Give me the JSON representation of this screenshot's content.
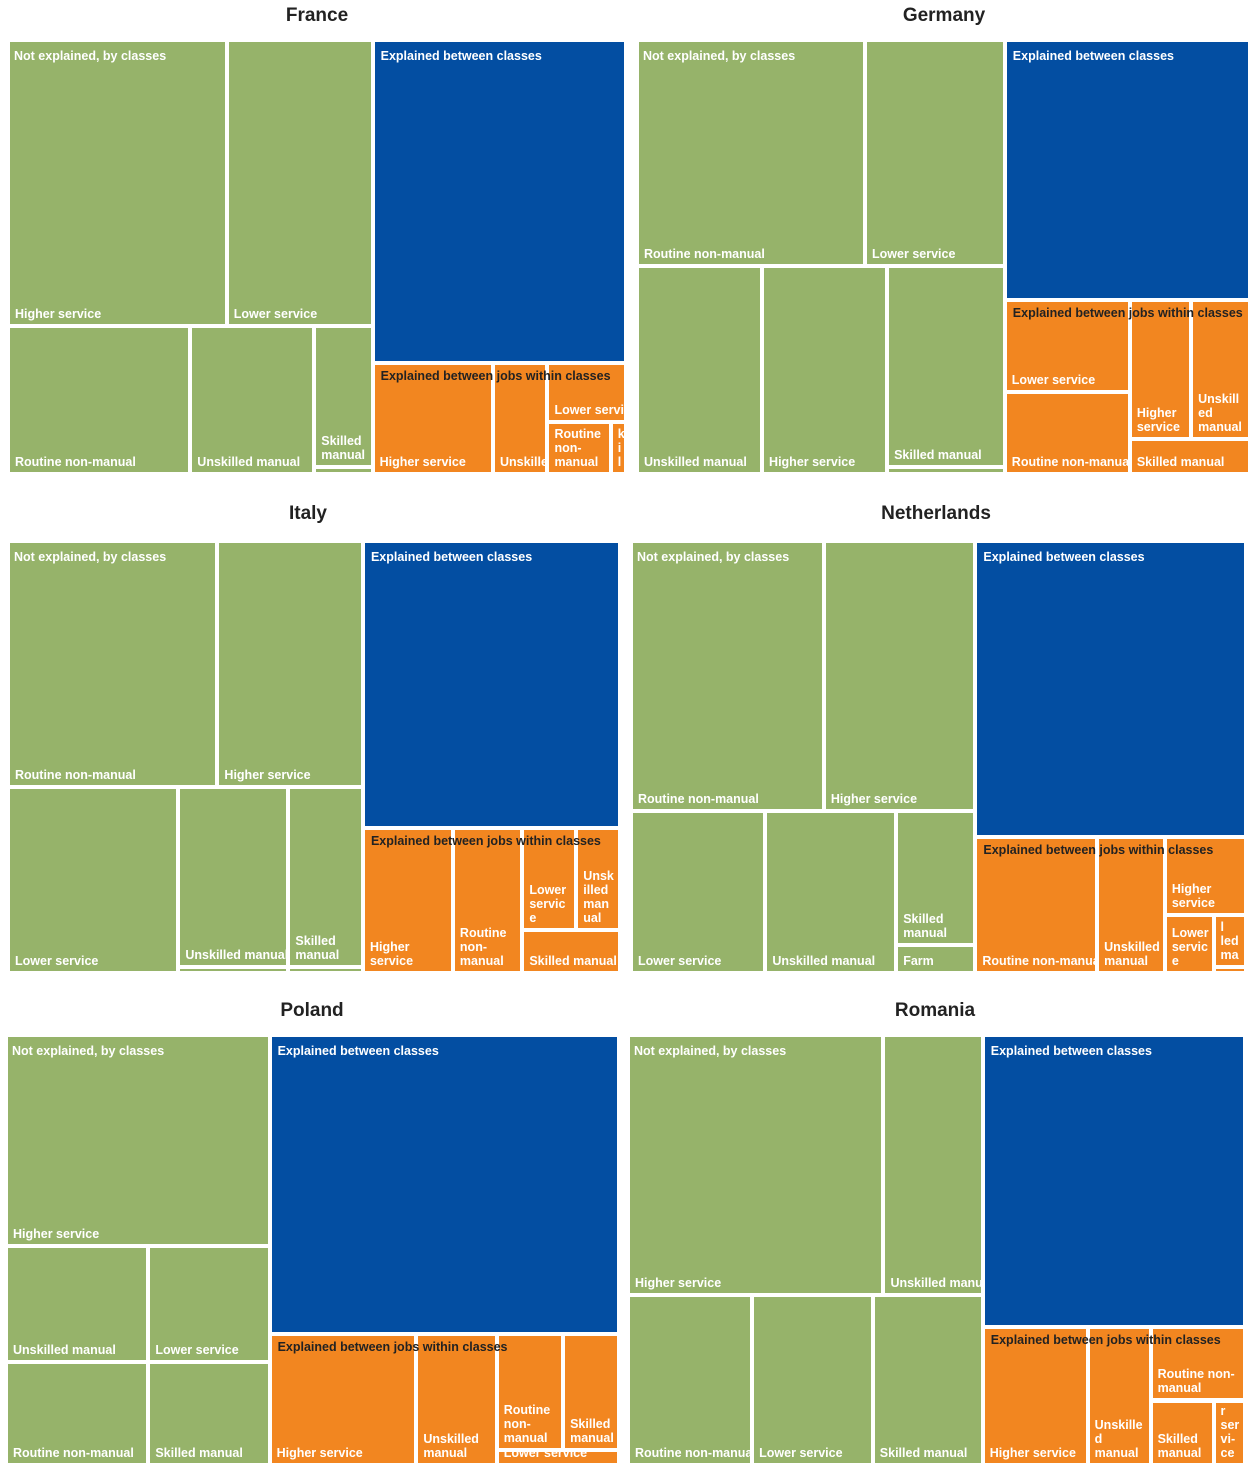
{
  "colors": {
    "not_explained": "#96b36a",
    "between_classes": "#034ea2",
    "within_classes": "#f28620"
  },
  "chart_data": [
    {
      "type": "treemap",
      "title": "France",
      "groups": [
        {
          "name": "Not explained, by classes",
          "color": "#96b36a",
          "children": [
            {
              "name": "Higher service",
              "value": 23.3
            },
            {
              "name": "Lower service",
              "value": 15.0
            },
            {
              "name": "Routine non-manual",
              "value": 12.4
            },
            {
              "name": "Unskilled manual",
              "value": 8.5
            },
            {
              "name": "Skilled manual",
              "value": 3.8
            },
            {
              "name": "",
              "value": 0.3
            }
          ]
        },
        {
          "name": "Explained between classes",
          "color": "#034ea2",
          "value": 25.2
        },
        {
          "name": "Explained between jobs within classes",
          "color": "#f28620",
          "children": [
            {
              "name": "Higher service",
              "value": 4.6
            },
            {
              "name": "Unskilled manual",
              "value": 2.1
            },
            {
              "name": "Lower service",
              "value": 1.3
            },
            {
              "name": "Routine non-manual",
              "value": 1.4
            },
            {
              "name": "Skil",
              "value": 0.5
            }
          ]
        }
      ]
    },
    {
      "type": "treemap",
      "title": "Germany",
      "groups": [
        {
          "name": "Not explained, by classes",
          "color": "#96b36a",
          "children": [
            {
              "name": "Routine non-manual",
              "value": 16.3
            },
            {
              "name": "Lower service",
              "value": 10.0
            },
            {
              "name": "Unskilled manual",
              "value": 9.0
            },
            {
              "name": "Higher service",
              "value": 9.0
            },
            {
              "name": "Skilled manual",
              "value": 8.4
            },
            {
              "name": "",
              "value": 0.3
            }
          ]
        },
        {
          "name": "Explained between classes",
          "color": "#034ea2",
          "value": 23.5
        },
        {
          "name": "Explained between jobs within classes",
          "color": "#f28620",
          "children": [
            {
              "name": "Lower service",
              "value": 4.5
            },
            {
              "name": "Routine non-manual",
              "value": 4.0
            },
            {
              "name": "Higher service",
              "value": 3.3
            },
            {
              "name": "Unskilled manual",
              "value": 3.0
            },
            {
              "name": "Skilled manual",
              "value": 2.4
            }
          ]
        }
      ]
    },
    {
      "type": "treemap",
      "title": "Italy",
      "groups": [
        {
          "name": "Not explained, by classes",
          "color": "#96b36a",
          "children": [
            {
              "name": "Routine non-manual",
              "value": 18.2
            },
            {
              "name": "Higher service",
              "value": 12.6
            },
            {
              "name": "Lower service",
              "value": 11.6
            },
            {
              "name": "Unskilled manual",
              "value": 7.4
            },
            {
              "name": "Skilled manual",
              "value": 4.7
            },
            {
              "name": "",
              "value": 0.3
            },
            {
              "name": "",
              "value": 0.2
            }
          ]
        },
        {
          "name": "Explained between classes",
          "color": "#034ea2",
          "value": 22.4
        },
        {
          "name": "Explained between jobs within classes",
          "color": "#f28620",
          "children": [
            {
              "name": "Higher service",
              "value": 4.9
            },
            {
              "name": "Routine non-manual",
              "value": 3.8
            },
            {
              "name": "Lower service",
              "value": 2.1
            },
            {
              "name": "Unskilled manual",
              "value": 1.5
            },
            {
              "name": "Skilled manual",
              "value": 2.3
            }
          ]
        }
      ]
    },
    {
      "type": "treemap",
      "title": "Netherlands",
      "groups": [
        {
          "name": "Not explained, by classes",
          "color": "#96b36a",
          "children": [
            {
              "name": "Routine non-manual",
              "value": 18.0
            },
            {
              "name": "Higher service",
              "value": 14.0
            },
            {
              "name": "Lower service",
              "value": 10.0
            },
            {
              "name": "Unskilled manual",
              "value": 10.0
            },
            {
              "name": "Skilled manual",
              "value": 4.5
            },
            {
              "name": "Farm",
              "value": 1.6
            }
          ]
        },
        {
          "name": "Explained between classes",
          "color": "#034ea2",
          "value": 24.1
        },
        {
          "name": "Explained between jobs within classes",
          "color": "#f28620",
          "children": [
            {
              "name": "Routine non-manual",
              "value": 5.7
            },
            {
              "name": "Unskilled manual",
              "value": 3.2
            },
            {
              "name": "Higher service",
              "value": 2.4
            },
            {
              "name": "Lower service",
              "value": 1.4
            },
            {
              "name": "Skil led ma",
              "value": 0.8
            },
            {
              "name": "",
              "value": 0.1
            }
          ]
        }
      ]
    },
    {
      "type": "treemap",
      "title": "Poland",
      "groups": [
        {
          "name": "Not explained, by classes",
          "color": "#96b36a",
          "children": [
            {
              "name": "Higher service",
              "value": 16.0
            },
            {
              "name": "Unskilled manual",
              "value": 8.3
            },
            {
              "name": "Lower service",
              "value": 8.3
            },
            {
              "name": "Routine non-manual",
              "value": 7.5
            },
            {
              "name": "Skilled manual",
              "value": 7.5
            }
          ]
        },
        {
          "name": "Explained between classes",
          "color": "#034ea2",
          "value": 30.4
        },
        {
          "name": "Explained between jobs within classes",
          "color": "#f28620",
          "children": [
            {
              "name": "Higher service",
              "value": 6.0
            },
            {
              "name": "Unskilled manual",
              "value": 3.4
            },
            {
              "name": "Routine non-manual",
              "value": 2.8
            },
            {
              "name": "Skilled manual",
              "value": 2.4
            },
            {
              "name": "Lower service",
              "value": 1.0
            }
          ]
        }
      ]
    },
    {
      "type": "treemap",
      "title": "Romania",
      "groups": [
        {
          "name": "Not explained, by classes",
          "color": "#96b36a",
          "children": [
            {
              "name": "Higher service",
              "value": 20.3
            },
            {
              "name": "Unskilled manual",
              "value": 7.9
            },
            {
              "name": "Routine non-manual",
              "value": 9.6
            },
            {
              "name": "Lower service",
              "value": 9.4
            },
            {
              "name": "Skilled manual",
              "value": 8.9
            }
          ]
        },
        {
          "name": "Explained between classes",
          "color": "#034ea2",
          "value": 24.3
        },
        {
          "name": "Explained between jobs within classes",
          "color": "#f28620",
          "children": [
            {
              "name": "Higher service",
              "value": 5.2
            },
            {
              "name": "Unskilled manual",
              "value": 3.1
            },
            {
              "name": "Routine non-manual",
              "value": 4.1
            },
            {
              "name": "Skilled manual",
              "value": 2.2
            },
            {
              "name": "Lower servi-ce",
              "value": 1.5
            }
          ]
        }
      ]
    }
  ]
}
